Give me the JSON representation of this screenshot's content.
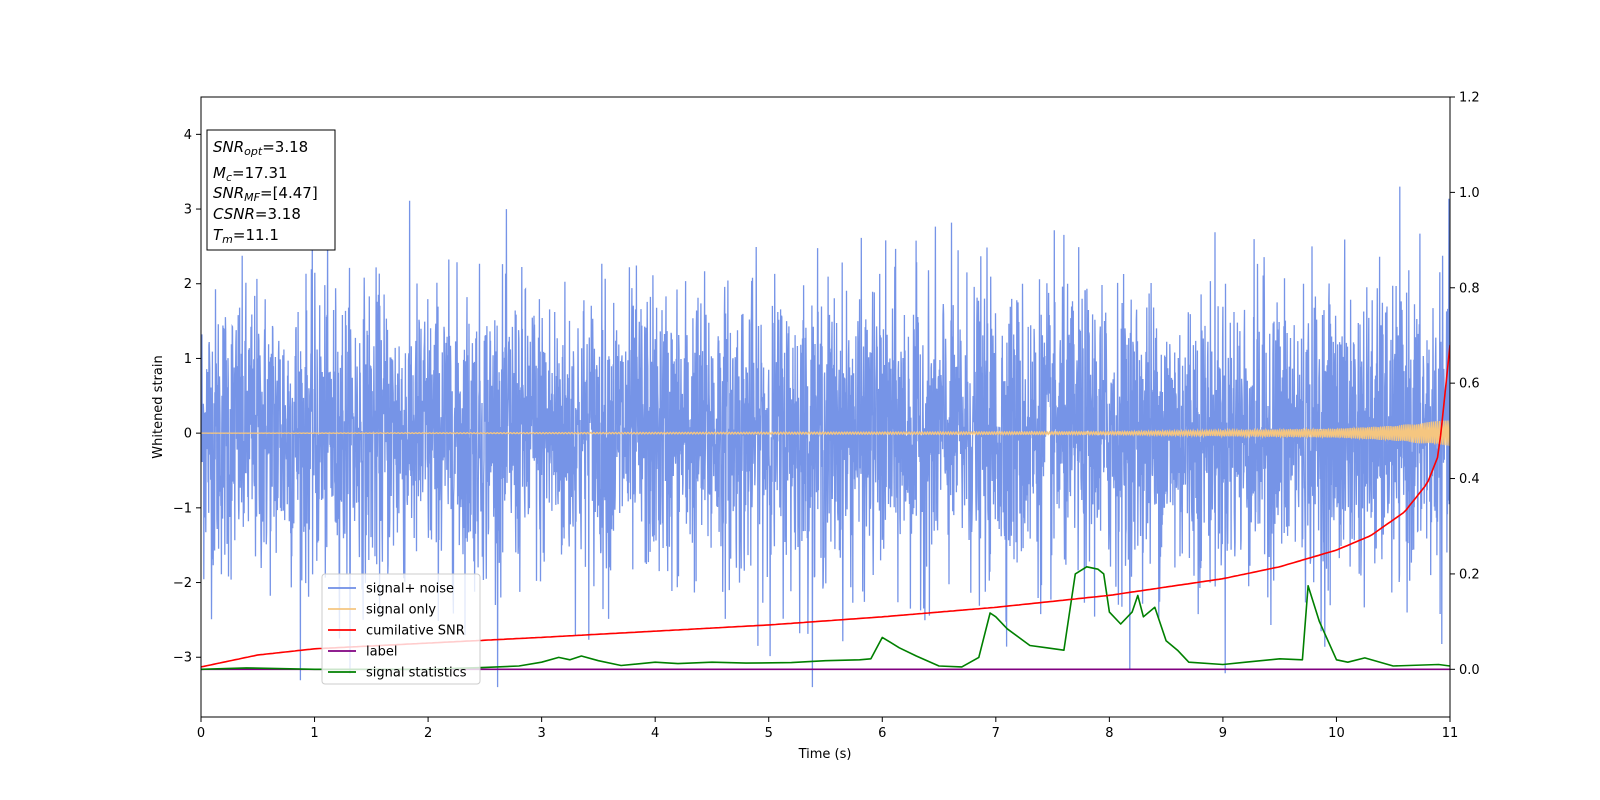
{
  "chart_data": {
    "type": "line",
    "title": "",
    "xlabel": "Time (s)",
    "ylabel": "Whitened strain",
    "xlim": [
      0,
      11
    ],
    "ylim_left": [
      -3.8,
      4.5
    ],
    "ylim_right": [
      -0.1,
      1.2
    ],
    "x_ticks": [
      0,
      1,
      2,
      3,
      4,
      5,
      6,
      7,
      8,
      9,
      10,
      11
    ],
    "y_ticks_left": [
      -3,
      -2,
      -1,
      0,
      1,
      2,
      3,
      4
    ],
    "y_ticks_right": [
      0.0,
      0.2,
      0.4,
      0.6,
      0.8,
      1.0,
      1.2
    ],
    "y_tick_labels_left": [
      "−3",
      "−2",
      "−1",
      "0",
      "1",
      "2",
      "3",
      "4"
    ],
    "y_tick_labels_right": [
      "0.0",
      "0.2",
      "0.4",
      "0.6",
      "0.8",
      "1.0",
      "1.2"
    ],
    "grid": false,
    "legend_position": "lower-left",
    "series": [
      {
        "name": "signal+ noise",
        "axis": "left",
        "color": "#6f8ee6",
        "style": "dense noise, approx. std 1.0, occasional peaks to ±3.3",
        "envelope": [
          -3.4,
          3.3
        ]
      },
      {
        "name": "signal only",
        "axis": "left",
        "color": "#f5c680",
        "amplitude_points": [
          [
            0,
            0.0
          ],
          [
            8,
            0.02
          ],
          [
            10,
            0.06
          ],
          [
            10.5,
            0.1
          ],
          [
            11,
            0.18
          ]
        ]
      },
      {
        "name": "cumilative SNR",
        "axis": "right",
        "color": "#ff0000",
        "points": [
          [
            0,
            0.005
          ],
          [
            0.5,
            0.03
          ],
          [
            1,
            0.043
          ],
          [
            2,
            0.055
          ],
          [
            3,
            0.067
          ],
          [
            4,
            0.08
          ],
          [
            5,
            0.093
          ],
          [
            6,
            0.11
          ],
          [
            7,
            0.13
          ],
          [
            8,
            0.155
          ],
          [
            9,
            0.19
          ],
          [
            9.5,
            0.215
          ],
          [
            10,
            0.25
          ],
          [
            10.3,
            0.28
          ],
          [
            10.6,
            0.33
          ],
          [
            10.8,
            0.39
          ],
          [
            10.9,
            0.45
          ],
          [
            11,
            0.68
          ]
        ]
      },
      {
        "name": "label",
        "axis": "right",
        "color": "#800080",
        "points": [
          [
            0,
            0.0
          ],
          [
            11,
            0.0
          ]
        ]
      },
      {
        "name": "signal statistics",
        "axis": "right",
        "color": "#008000",
        "points": [
          [
            0,
            0.0
          ],
          [
            0.4,
            0.003
          ],
          [
            1,
            0.0
          ],
          [
            2,
            0.0
          ],
          [
            2.5,
            0.004
          ],
          [
            2.8,
            0.007
          ],
          [
            3.0,
            0.015
          ],
          [
            3.15,
            0.025
          ],
          [
            3.25,
            0.02
          ],
          [
            3.35,
            0.028
          ],
          [
            3.5,
            0.018
          ],
          [
            3.7,
            0.008
          ],
          [
            4.0,
            0.015
          ],
          [
            4.2,
            0.012
          ],
          [
            4.5,
            0.015
          ],
          [
            4.8,
            0.013
          ],
          [
            5.2,
            0.014
          ],
          [
            5.5,
            0.018
          ],
          [
            5.8,
            0.02
          ],
          [
            5.9,
            0.022
          ],
          [
            6.0,
            0.067
          ],
          [
            6.15,
            0.045
          ],
          [
            6.3,
            0.028
          ],
          [
            6.5,
            0.007
          ],
          [
            6.7,
            0.005
          ],
          [
            6.85,
            0.025
          ],
          [
            6.95,
            0.118
          ],
          [
            7.0,
            0.11
          ],
          [
            7.1,
            0.085
          ],
          [
            7.3,
            0.05
          ],
          [
            7.45,
            0.045
          ],
          [
            7.6,
            0.04
          ],
          [
            7.7,
            0.2
          ],
          [
            7.8,
            0.215
          ],
          [
            7.9,
            0.21
          ],
          [
            7.95,
            0.2
          ],
          [
            8.0,
            0.12
          ],
          [
            8.1,
            0.095
          ],
          [
            8.2,
            0.12
          ],
          [
            8.25,
            0.155
          ],
          [
            8.3,
            0.11
          ],
          [
            8.4,
            0.13
          ],
          [
            8.5,
            0.06
          ],
          [
            8.6,
            0.04
          ],
          [
            8.7,
            0.015
          ],
          [
            9.0,
            0.01
          ],
          [
            9.2,
            0.015
          ],
          [
            9.5,
            0.022
          ],
          [
            9.7,
            0.02
          ],
          [
            9.75,
            0.175
          ],
          [
            9.85,
            0.1
          ],
          [
            10.0,
            0.02
          ],
          [
            10.1,
            0.015
          ],
          [
            10.25,
            0.024
          ],
          [
            10.5,
            0.007
          ],
          [
            10.9,
            0.01
          ],
          [
            11,
            0.007
          ]
        ]
      }
    ],
    "annotation_box": {
      "lines": [
        {
          "sym": "SNR",
          "sub": "opt",
          "val": "=3.18"
        },
        {
          "sym": "M",
          "sub": "c",
          "val": "=17.31"
        },
        {
          "sym": "SNR",
          "sub": "MF",
          "val": "=[4.47]"
        },
        {
          "sym": "CSNR",
          "sub": "",
          "val": "=3.18"
        },
        {
          "sym": "T",
          "sub": "m",
          "val": "=11.1"
        }
      ]
    }
  }
}
